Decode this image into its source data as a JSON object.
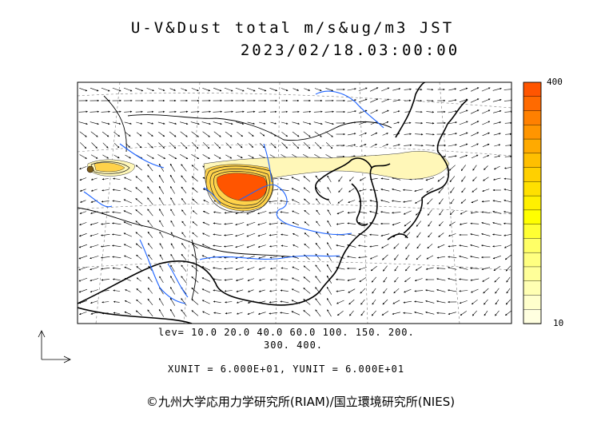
{
  "title": {
    "line1": "U-V&Dust total m/s&ug/m3 JST",
    "line2": "2023/02/18.03:00:00"
  },
  "contour_levels": {
    "line1": "lev= 10.0 20.0 40.0 60.0 100. 150. 200.",
    "line2": "300. 400."
  },
  "units_text": "XUNIT = 6.000E+01, YUNIT = 6.000E+01",
  "copyright": "©九州大学応用力学研究所(RIAM)/国立環境研究所(NIES)",
  "colorbar": {
    "max_label": "400",
    "min_label": "10",
    "colors": [
      "#ff5500",
      "#ff6a00",
      "#ff8000",
      "#ff9500",
      "#ffaa00",
      "#ffbf00",
      "#ffd000",
      "#ffe000",
      "#fff000",
      "#ffff00",
      "#ffff33",
      "#ffff66",
      "#ffff80",
      "#ffff99",
      "#ffffb3",
      "#ffffcc",
      "#ffffe0"
    ]
  },
  "map_colors": {
    "coast": "#000000",
    "rivers": "#1e64ff",
    "dust_high": "#ff5500",
    "dust_mid": "#ffb000",
    "dust_low": "#fff7b8"
  },
  "icons": [
    "wind-arrow-icon",
    "axis-reference-icon"
  ]
}
